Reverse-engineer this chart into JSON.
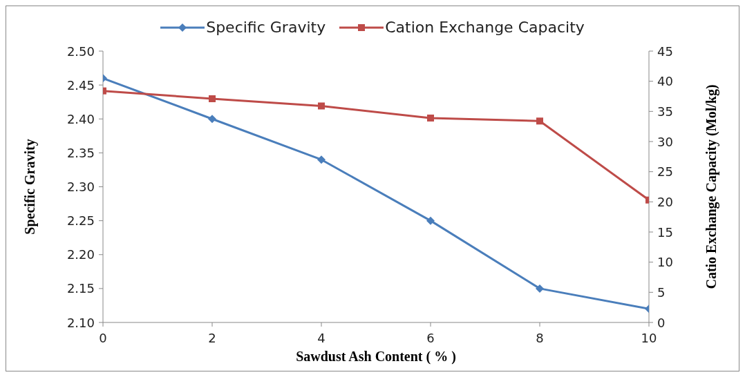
{
  "chart_data": {
    "type": "line",
    "xlabel": "Sawdust Ash Content ( % )",
    "ylabel": "Specific Gravity",
    "y2label": "Catio Exchange Capacity  (Mol/kg)",
    "x": [
      0,
      2,
      4,
      6,
      8,
      10
    ],
    "series": [
      {
        "name": "Specific Gravity",
        "color": "#4a7ebb",
        "marker": "diamond",
        "values": [
          2.46,
          2.4,
          2.34,
          2.25,
          2.15,
          2.12
        ]
      },
      {
        "name": "Cation  Exchange Capacity",
        "color": "#be4b48",
        "marker": "square",
        "axis": "y2",
        "values": [
          38.4,
          37.1,
          35.9,
          33.9,
          33.4,
          20.3
        ]
      }
    ],
    "xlim": [
      0,
      10
    ],
    "xticks": [
      0,
      2,
      4,
      6,
      8,
      10
    ],
    "ylim": [
      2.1,
      2.5
    ],
    "yticks": [
      {
        "value": 2.1,
        "label": "2.10"
      },
      {
        "value": 2.15,
        "label": "2.15"
      },
      {
        "value": 2.2,
        "label": "2.20"
      },
      {
        "value": 2.25,
        "label": "2.25"
      },
      {
        "value": 2.3,
        "label": "2.30"
      },
      {
        "value": 2.35,
        "label": "2.35"
      },
      {
        "value": 2.4,
        "label": "2.40"
      },
      {
        "value": 2.45,
        "label": "2.45"
      },
      {
        "value": 2.5,
        "label": "2.50"
      }
    ],
    "y2lim": [
      0,
      45
    ],
    "y2ticks": [
      0,
      5,
      10,
      15,
      20,
      25,
      30,
      35,
      40,
      45
    ],
    "grid": false,
    "legend": "top",
    "line_style": "solid"
  }
}
